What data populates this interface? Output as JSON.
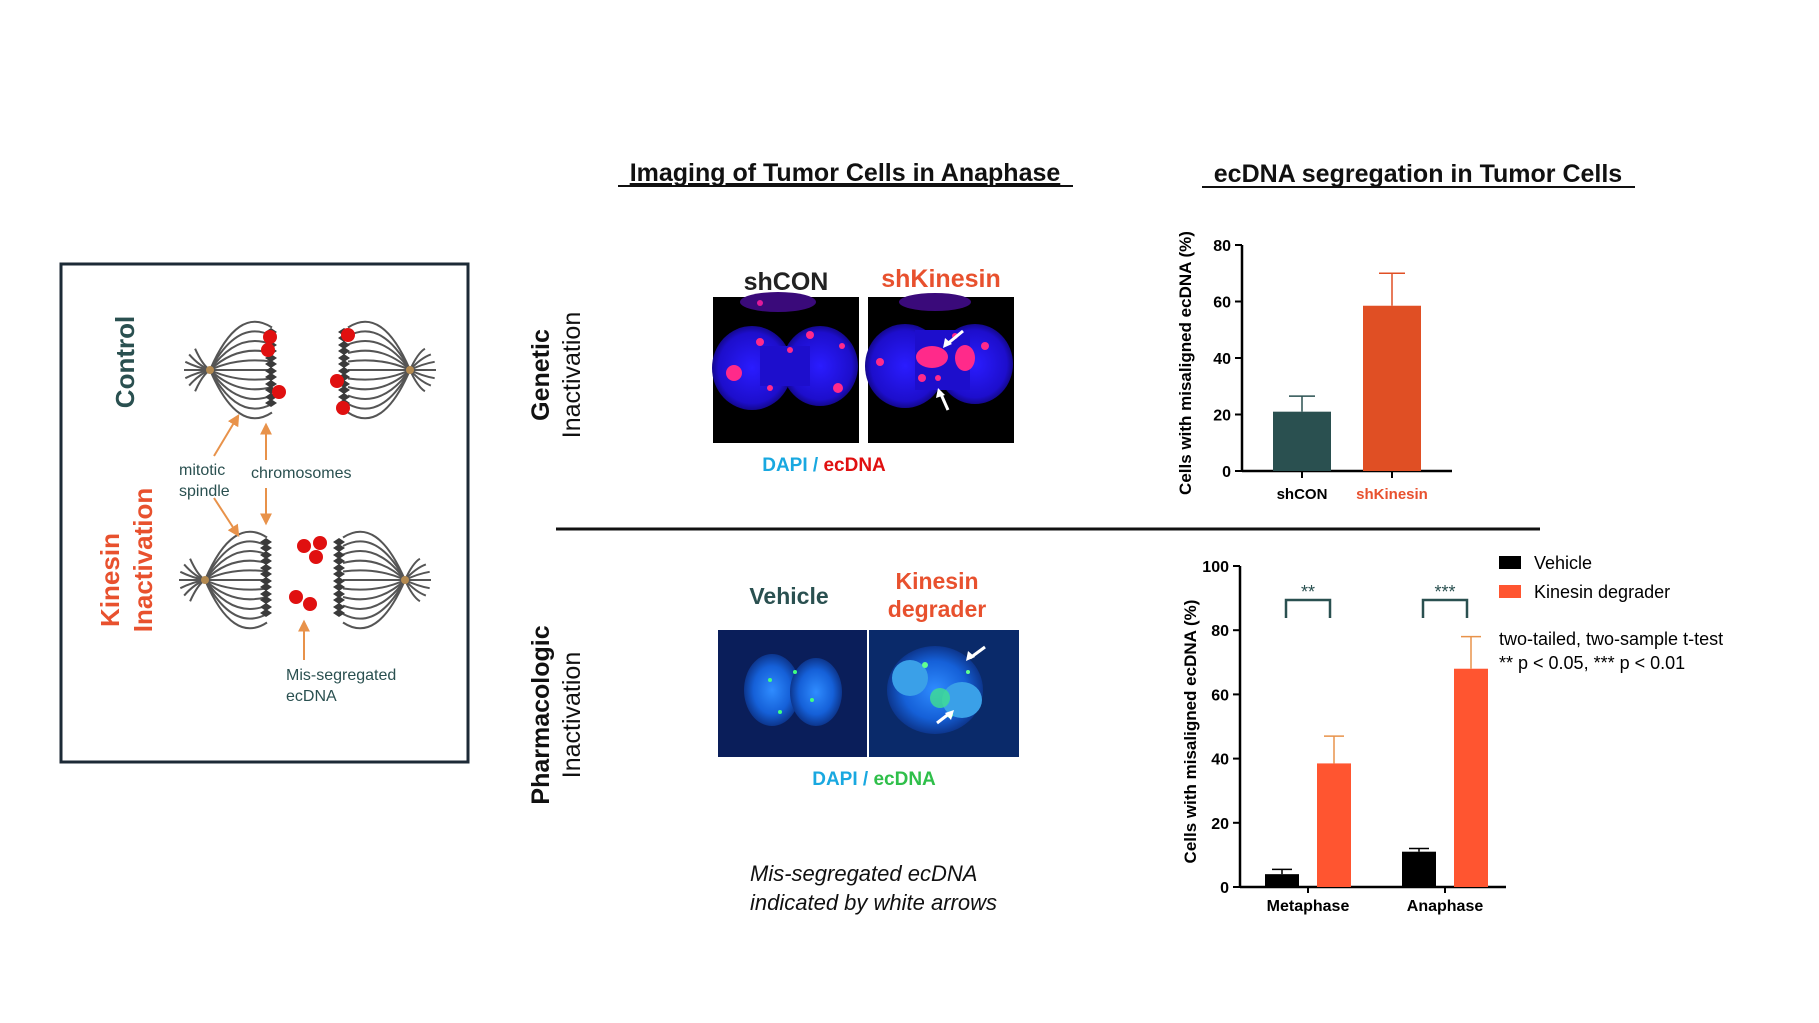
{
  "colors": {
    "teal": "#2a5050",
    "orange": "#e8512e",
    "orange_bar": "#ff5530",
    "orange_arrow": "#e8924a",
    "cyan": "#19a8e0",
    "green": "#2fbf4a",
    "red": "#e01010",
    "black": "#000000"
  },
  "schematic": {
    "control_label": "Control",
    "kinesin_label_line1": "Kinesin",
    "kinesin_label_line2": "Inactivation",
    "mitotic_spindle_line1": "mitotic",
    "mitotic_spindle_line2": "spindle",
    "chromosomes": "chromosomes",
    "mis_segregated_line1": "Mis-segregated",
    "mis_segregated_line2": "ecDNA"
  },
  "headers": {
    "imaging_title": "Imaging of Tumor Cells in Anaphase",
    "segregation_title": "ecDNA segregation in Tumor Cells"
  },
  "genetic": {
    "row_label_bold": "Genetic",
    "row_label_light": "Inactivation",
    "img_label_left": "shCON",
    "img_label_right": "shKinesin",
    "stain_dapi": "DAPI",
    "stain_sep": " / ",
    "stain_ecdna": "ecDNA"
  },
  "pharmacologic": {
    "row_label_bold": "Pharmacologic",
    "row_label_light": "Inactivation",
    "img_label_left": "Vehicle",
    "img_label_right_line1": "Kinesin",
    "img_label_right_line2": "degrader",
    "stain_dapi": "DAPI",
    "stain_sep": " / ",
    "stain_ecdna": "ecDNA",
    "caption_line1": "Mis-segregated ecDNA",
    "caption_line2": "indicated by white arrows"
  },
  "chart_data": [
    {
      "type": "bar",
      "ylabel": "Cells with misaligned ecDNA (%)",
      "categories": [
        "shCON",
        "shKinesin"
      ],
      "values": [
        21,
        58.5
      ],
      "errors": [
        5.5,
        11.5
      ],
      "bar_colors": [
        "#2a5050",
        "#e04f24"
      ],
      "category_colors": [
        "#000000",
        "#e8512e"
      ],
      "ylim": [
        0,
        80
      ],
      "yticks": [
        0,
        20,
        40,
        60,
        80
      ]
    },
    {
      "type": "bar",
      "ylabel": "Cells with misaligned ecDNA (%)",
      "categories": [
        "Metaphase",
        "Anaphase"
      ],
      "series": [
        {
          "name": "Vehicle",
          "color": "#000000",
          "values": [
            4,
            11
          ],
          "errors": [
            1.5,
            1
          ]
        },
        {
          "name": "Kinesin degrader",
          "color": "#ff5530",
          "values": [
            38.5,
            68
          ],
          "errors": [
            8.5,
            10
          ]
        }
      ],
      "significance": [
        "**",
        "***"
      ],
      "ylim": [
        0,
        100
      ],
      "yticks": [
        0,
        20,
        40,
        60,
        80,
        100
      ],
      "legend_position": "right",
      "stat_note_line1": "two-tailed, two-sample t-test",
      "stat_note_line2": "** p < 0.05, *** p < 0.01"
    }
  ]
}
